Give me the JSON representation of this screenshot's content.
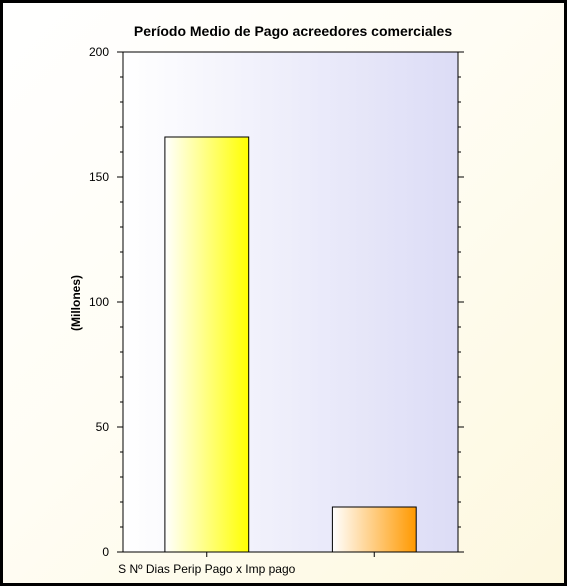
{
  "chart_data": {
    "type": "bar",
    "title": "Período Medio de Pago acreedores comerciales",
    "ylabel": "(Millones)",
    "xlabel": "",
    "ylim": [
      0,
      200
    ],
    "yticks": [
      0,
      50,
      100,
      150,
      200
    ],
    "categories": [
      "S Nº Dias Perip Pago x Imp pago",
      ""
    ],
    "values": [
      166,
      18
    ],
    "bar_colors": [
      "#ffff00",
      "#ff9900"
    ],
    "grid": false,
    "legend": "none"
  }
}
